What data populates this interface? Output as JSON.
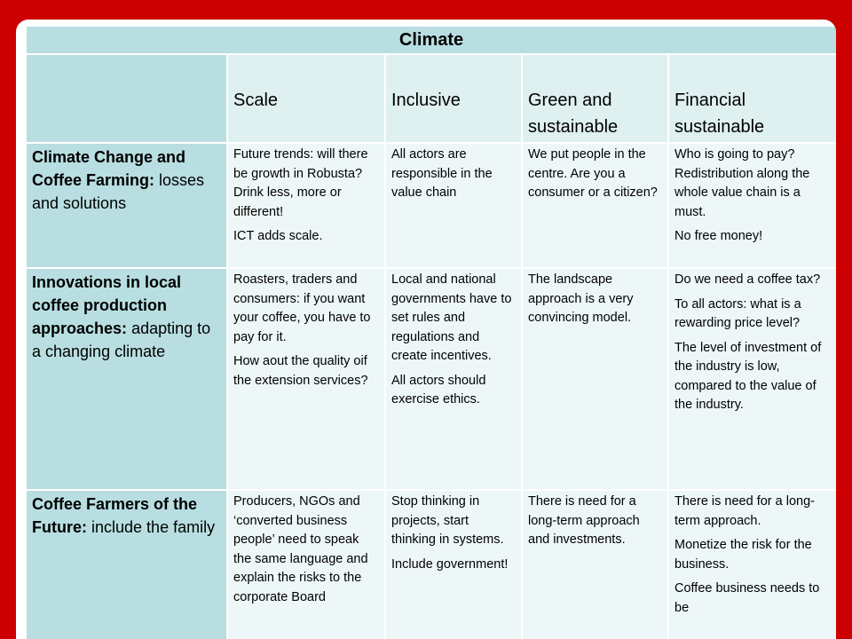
{
  "table": {
    "title": "Climate",
    "columns": [
      "Scale",
      "Inclusive",
      "Green and sustainable",
      "Financial sustainable"
    ],
    "rows": [
      {
        "heading_bold": "Climate Change and Coffee Farming:",
        "heading_rest": "losses and solutions",
        "cells": [
          [
            "Future trends: will there be growth in Robusta? Drink less, more or different!",
            "ICT adds scale."
          ],
          [
            "All actors are responsible in the value chain"
          ],
          [
            "We put people in the centre. Are you a consumer or a citizen?"
          ],
          [
            "Who is going to pay? Redistribution along the whole value chain is a must.",
            "No free money!"
          ]
        ]
      },
      {
        "heading_bold": "Innovations in local coffee production approaches:",
        "heading_rest": "adapting to a changing climate",
        "cells": [
          [
            "Roasters, traders and consumers: if you want your coffee, you have to pay for it.",
            "How aout the quality oif the extension services?"
          ],
          [
            "Local and national governments have to set rules and regulations and create incentives.",
            "All actors should exercise ethics."
          ],
          [
            "The landscape approach is a very convincing model."
          ],
          [
            "Do we need a coffee tax?",
            "To all actors: what is a rewarding price level?",
            "The level of investment of the industry is low, compared to the value of the industry."
          ]
        ]
      },
      {
        "heading_bold": "Coffee Farmers of the Future:",
        "heading_rest": "include the family",
        "cells": [
          [
            "Producers, NGOs and ‘converted business people’ need to speak the same language and explain the risks to the corporate Board"
          ],
          [
            "Stop thinking in projects, start thinking in systems.",
            "Include government!"
          ],
          [
            "There is need for a long-term approach and investments."
          ],
          [
            "There is need for a long-term approach.",
            "Monetize the risk for the business.",
            "Coffee business needs to be"
          ]
        ]
      }
    ]
  }
}
